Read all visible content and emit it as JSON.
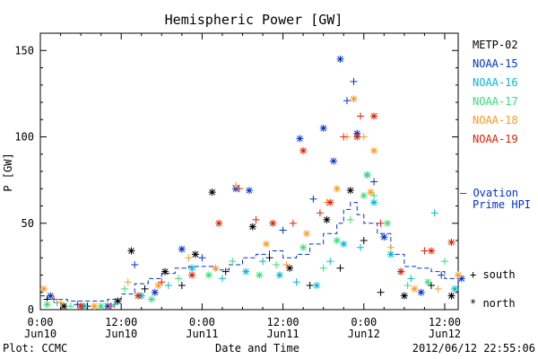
{
  "chart_data": {
    "type": "scatter",
    "title": "Hemispheric Power [GW]",
    "ylabel": "P [GW]",
    "xlabel": "Date and Time",
    "ylim": [
      0,
      160
    ],
    "yticks": [
      0,
      50,
      100,
      150
    ],
    "xrange_hours": [
      0,
      62
    ],
    "xticks": [
      {
        "hours": 0,
        "time": "0:00",
        "day": "Jun10"
      },
      {
        "hours": 12,
        "time": "12:00",
        "day": "Jun10"
      },
      {
        "hours": 24,
        "time": "0:00",
        "day": "Jun11"
      },
      {
        "hours": 36,
        "time": "12:00",
        "day": "Jun11"
      },
      {
        "hours": 48,
        "time": "0:00",
        "day": "Jun12"
      },
      {
        "hours": 60,
        "time": "12:00",
        "day": "Jun12"
      }
    ],
    "grid": false,
    "legend_position": "right",
    "series": [
      {
        "name": "METP-02",
        "color": "#000000",
        "points": [
          {
            "x": 1.0,
            "y": 6,
            "m": "+"
          },
          {
            "x": 3.5,
            "y": 2,
            "m": "*"
          },
          {
            "x": 7.0,
            "y": 2,
            "m": "+"
          },
          {
            "x": 11.5,
            "y": 5,
            "m": "*"
          },
          {
            "x": 13.5,
            "y": 34,
            "m": "*"
          },
          {
            "x": 15.5,
            "y": 12,
            "m": "+"
          },
          {
            "x": 18.5,
            "y": 22,
            "m": "*"
          },
          {
            "x": 21.0,
            "y": 14,
            "m": "+"
          },
          {
            "x": 23.0,
            "y": 32,
            "m": "*"
          },
          {
            "x": 25.5,
            "y": 68,
            "m": "*"
          },
          {
            "x": 27.5,
            "y": 22,
            "m": "+"
          },
          {
            "x": 31.5,
            "y": 48,
            "m": "*"
          },
          {
            "x": 34.0,
            "y": 30,
            "m": "+"
          },
          {
            "x": 37.0,
            "y": 24,
            "m": "*"
          },
          {
            "x": 40.0,
            "y": 14,
            "m": "+"
          },
          {
            "x": 42.5,
            "y": 52,
            "m": "*"
          },
          {
            "x": 44.5,
            "y": 24,
            "m": "+"
          },
          {
            "x": 46.0,
            "y": 69,
            "m": "*"
          },
          {
            "x": 48.0,
            "y": 40,
            "m": "+"
          },
          {
            "x": 50.5,
            "y": 10,
            "m": "+"
          },
          {
            "x": 54.0,
            "y": 8,
            "m": "*"
          },
          {
            "x": 58.0,
            "y": 14,
            "m": "+"
          },
          {
            "x": 61.0,
            "y": 8,
            "m": "*"
          }
        ]
      },
      {
        "name": "NOAA-15",
        "color": "#0033cc",
        "points": [
          {
            "x": 1.5,
            "y": 8,
            "m": "*"
          },
          {
            "x": 5.5,
            "y": 3,
            "m": "+"
          },
          {
            "x": 10.0,
            "y": 2,
            "m": "*"
          },
          {
            "x": 14.0,
            "y": 26,
            "m": "+"
          },
          {
            "x": 17.0,
            "y": 10,
            "m": "*"
          },
          {
            "x": 21.0,
            "y": 35,
            "m": "*"
          },
          {
            "x": 24.0,
            "y": 30,
            "m": "+"
          },
          {
            "x": 29.0,
            "y": 70,
            "m": "*"
          },
          {
            "x": 31.0,
            "y": 69,
            "m": "*"
          },
          {
            "x": 36.0,
            "y": 46,
            "m": "+"
          },
          {
            "x": 38.5,
            "y": 99,
            "m": "*"
          },
          {
            "x": 40.5,
            "y": 64,
            "m": "+"
          },
          {
            "x": 42.0,
            "y": 105,
            "m": "*"
          },
          {
            "x": 43.5,
            "y": 86,
            "m": "*"
          },
          {
            "x": 44.5,
            "y": 145,
            "m": "*"
          },
          {
            "x": 45.5,
            "y": 121,
            "m": "+"
          },
          {
            "x": 46.5,
            "y": 132,
            "m": "+"
          },
          {
            "x": 47.0,
            "y": 102,
            "m": "*"
          },
          {
            "x": 48.5,
            "y": 78,
            "m": "*"
          },
          {
            "x": 49.5,
            "y": 74,
            "m": "+"
          },
          {
            "x": 51.0,
            "y": 42,
            "m": "*"
          },
          {
            "x": 53.5,
            "y": 22,
            "m": "+"
          },
          {
            "x": 56.5,
            "y": 10,
            "m": "*"
          },
          {
            "x": 59.5,
            "y": 20,
            "m": "+"
          },
          {
            "x": 62.5,
            "y": 18,
            "m": "*"
          }
        ]
      },
      {
        "name": "NOAA-16",
        "color": "#00b8d4",
        "points": [
          {
            "x": 2.5,
            "y": 4,
            "m": "+"
          },
          {
            "x": 6.5,
            "y": 2,
            "m": "*"
          },
          {
            "x": 11.0,
            "y": 3,
            "m": "+"
          },
          {
            "x": 15.0,
            "y": 8,
            "m": "*"
          },
          {
            "x": 19.0,
            "y": 14,
            "m": "+"
          },
          {
            "x": 22.5,
            "y": 24,
            "m": "*"
          },
          {
            "x": 27.0,
            "y": 18,
            "m": "+"
          },
          {
            "x": 30.5,
            "y": 22,
            "m": "*"
          },
          {
            "x": 33.0,
            "y": 28,
            "m": "+"
          },
          {
            "x": 35.5,
            "y": 20,
            "m": "*"
          },
          {
            "x": 38.0,
            "y": 16,
            "m": "+"
          },
          {
            "x": 41.0,
            "y": 14,
            "m": "*"
          },
          {
            "x": 43.0,
            "y": 28,
            "m": "+"
          },
          {
            "x": 45.0,
            "y": 38,
            "m": "*"
          },
          {
            "x": 47.5,
            "y": 36,
            "m": "+"
          },
          {
            "x": 49.5,
            "y": 62,
            "m": "*"
          },
          {
            "x": 52.0,
            "y": 32,
            "m": "*"
          },
          {
            "x": 55.0,
            "y": 18,
            "m": "+"
          },
          {
            "x": 58.5,
            "y": 56,
            "m": "+"
          },
          {
            "x": 61.5,
            "y": 12,
            "m": "*"
          }
        ]
      },
      {
        "name": "NOAA-17",
        "color": "#33e07a",
        "points": [
          {
            "x": 1.0,
            "y": 3,
            "m": "*"
          },
          {
            "x": 4.5,
            "y": 2,
            "m": "+"
          },
          {
            "x": 9.0,
            "y": 2,
            "m": "*"
          },
          {
            "x": 12.5,
            "y": 12,
            "m": "+"
          },
          {
            "x": 16.5,
            "y": 6,
            "m": "*"
          },
          {
            "x": 20.5,
            "y": 18,
            "m": "+"
          },
          {
            "x": 25.0,
            "y": 20,
            "m": "*"
          },
          {
            "x": 28.5,
            "y": 28,
            "m": "+"
          },
          {
            "x": 32.5,
            "y": 20,
            "m": "*"
          },
          {
            "x": 35.0,
            "y": 26,
            "m": "+"
          },
          {
            "x": 39.0,
            "y": 36,
            "m": "*"
          },
          {
            "x": 42.0,
            "y": 24,
            "m": "+"
          },
          {
            "x": 44.0,
            "y": 40,
            "m": "*"
          },
          {
            "x": 46.0,
            "y": 52,
            "m": "+"
          },
          {
            "x": 48.0,
            "y": 66,
            "m": "*"
          },
          {
            "x": 48.5,
            "y": 78,
            "m": "*"
          },
          {
            "x": 49.5,
            "y": 66,
            "m": "+"
          },
          {
            "x": 51.5,
            "y": 50,
            "m": "*"
          },
          {
            "x": 54.5,
            "y": 14,
            "m": "+"
          },
          {
            "x": 57.5,
            "y": 16,
            "m": "*"
          },
          {
            "x": 60.0,
            "y": 28,
            "m": "+"
          }
        ]
      },
      {
        "name": "NOAA-18",
        "color": "#ff9922",
        "points": [
          {
            "x": 0.5,
            "y": 12,
            "m": "*"
          },
          {
            "x": 3.0,
            "y": 4,
            "m": "+"
          },
          {
            "x": 8.0,
            "y": 2,
            "m": "*"
          },
          {
            "x": 13.0,
            "y": 16,
            "m": "+"
          },
          {
            "x": 17.5,
            "y": 14,
            "m": "*"
          },
          {
            "x": 22.0,
            "y": 30,
            "m": "+"
          },
          {
            "x": 26.0,
            "y": 24,
            "m": "*"
          },
          {
            "x": 29.0,
            "y": 72,
            "m": "+"
          },
          {
            "x": 33.5,
            "y": 38,
            "m": "*"
          },
          {
            "x": 36.5,
            "y": 26,
            "m": "+"
          },
          {
            "x": 39.5,
            "y": 44,
            "m": "*"
          },
          {
            "x": 42.5,
            "y": 62,
            "m": "+"
          },
          {
            "x": 44.0,
            "y": 70,
            "m": "*"
          },
          {
            "x": 45.5,
            "y": 100,
            "m": "+"
          },
          {
            "x": 46.5,
            "y": 122,
            "m": "*"
          },
          {
            "x": 48.0,
            "y": 100,
            "m": "+"
          },
          {
            "x": 49.0,
            "y": 68,
            "m": "*"
          },
          {
            "x": 49.5,
            "y": 92,
            "m": "*"
          },
          {
            "x": 52.0,
            "y": 36,
            "m": "+"
          },
          {
            "x": 55.5,
            "y": 12,
            "m": "*"
          },
          {
            "x": 59.0,
            "y": 12,
            "m": "+"
          },
          {
            "x": 62.0,
            "y": 20,
            "m": "*"
          }
        ]
      },
      {
        "name": "NOAA-19",
        "color": "#dd2200",
        "points": [
          {
            "x": 2.0,
            "y": 6,
            "m": "+"
          },
          {
            "x": 6.0,
            "y": 2,
            "m": "*"
          },
          {
            "x": 10.5,
            "y": 2,
            "m": "+"
          },
          {
            "x": 14.5,
            "y": 8,
            "m": "*"
          },
          {
            "x": 18.0,
            "y": 16,
            "m": "+"
          },
          {
            "x": 22.5,
            "y": 20,
            "m": "*"
          },
          {
            "x": 26.5,
            "y": 50,
            "m": "*"
          },
          {
            "x": 29.5,
            "y": 70,
            "m": "+"
          },
          {
            "x": 32.0,
            "y": 52,
            "m": "+"
          },
          {
            "x": 34.5,
            "y": 50,
            "m": "*"
          },
          {
            "x": 37.5,
            "y": 50,
            "m": "+"
          },
          {
            "x": 39.0,
            "y": 92,
            "m": "*"
          },
          {
            "x": 41.5,
            "y": 56,
            "m": "+"
          },
          {
            "x": 43.0,
            "y": 62,
            "m": "*"
          },
          {
            "x": 45.0,
            "y": 100,
            "m": "+"
          },
          {
            "x": 47.0,
            "y": 100,
            "m": "*"
          },
          {
            "x": 47.5,
            "y": 112,
            "m": "+"
          },
          {
            "x": 49.5,
            "y": 112,
            "m": "*"
          },
          {
            "x": 50.5,
            "y": 50,
            "m": "+"
          },
          {
            "x": 53.5,
            "y": 22,
            "m": "*"
          },
          {
            "x": 57.0,
            "y": 34,
            "m": "+"
          },
          {
            "x": 58.0,
            "y": 34,
            "m": "*"
          },
          {
            "x": 61.0,
            "y": 39,
            "m": "*"
          }
        ]
      }
    ],
    "ovation": {
      "name": "Ovation Prime HPI",
      "label_line1": "– Ovation",
      "label_line2": "Prime HPI",
      "color": "#0033cc",
      "points": [
        {
          "x": 0,
          "y": 8
        },
        {
          "x": 2,
          "y": 6
        },
        {
          "x": 4,
          "y": 5
        },
        {
          "x": 6,
          "y": 5
        },
        {
          "x": 8,
          "y": 5
        },
        {
          "x": 10,
          "y": 6
        },
        {
          "x": 12,
          "y": 9
        },
        {
          "x": 14,
          "y": 15
        },
        {
          "x": 16,
          "y": 18
        },
        {
          "x": 18,
          "y": 21
        },
        {
          "x": 20,
          "y": 24
        },
        {
          "x": 22,
          "y": 25
        },
        {
          "x": 24,
          "y": 25
        },
        {
          "x": 26,
          "y": 23
        },
        {
          "x": 28,
          "y": 26
        },
        {
          "x": 30,
          "y": 30
        },
        {
          "x": 32,
          "y": 32
        },
        {
          "x": 34,
          "y": 34
        },
        {
          "x": 36,
          "y": 30
        },
        {
          "x": 38,
          "y": 32
        },
        {
          "x": 40,
          "y": 38
        },
        {
          "x": 42,
          "y": 44
        },
        {
          "x": 44,
          "y": 50
        },
        {
          "x": 45,
          "y": 58
        },
        {
          "x": 46,
          "y": 62
        },
        {
          "x": 47,
          "y": 55
        },
        {
          "x": 48,
          "y": 50
        },
        {
          "x": 50,
          "y": 44
        },
        {
          "x": 52,
          "y": 32
        },
        {
          "x": 54,
          "y": 25
        },
        {
          "x": 56,
          "y": 24
        },
        {
          "x": 58,
          "y": 22
        },
        {
          "x": 60,
          "y": 18
        },
        {
          "x": 62,
          "y": 14
        }
      ]
    },
    "marker_legend": {
      "plus": "+ south",
      "star": "* north"
    }
  },
  "footer": {
    "left": "Plot: CCMC",
    "right": "2012/06/12 22:55:06"
  }
}
